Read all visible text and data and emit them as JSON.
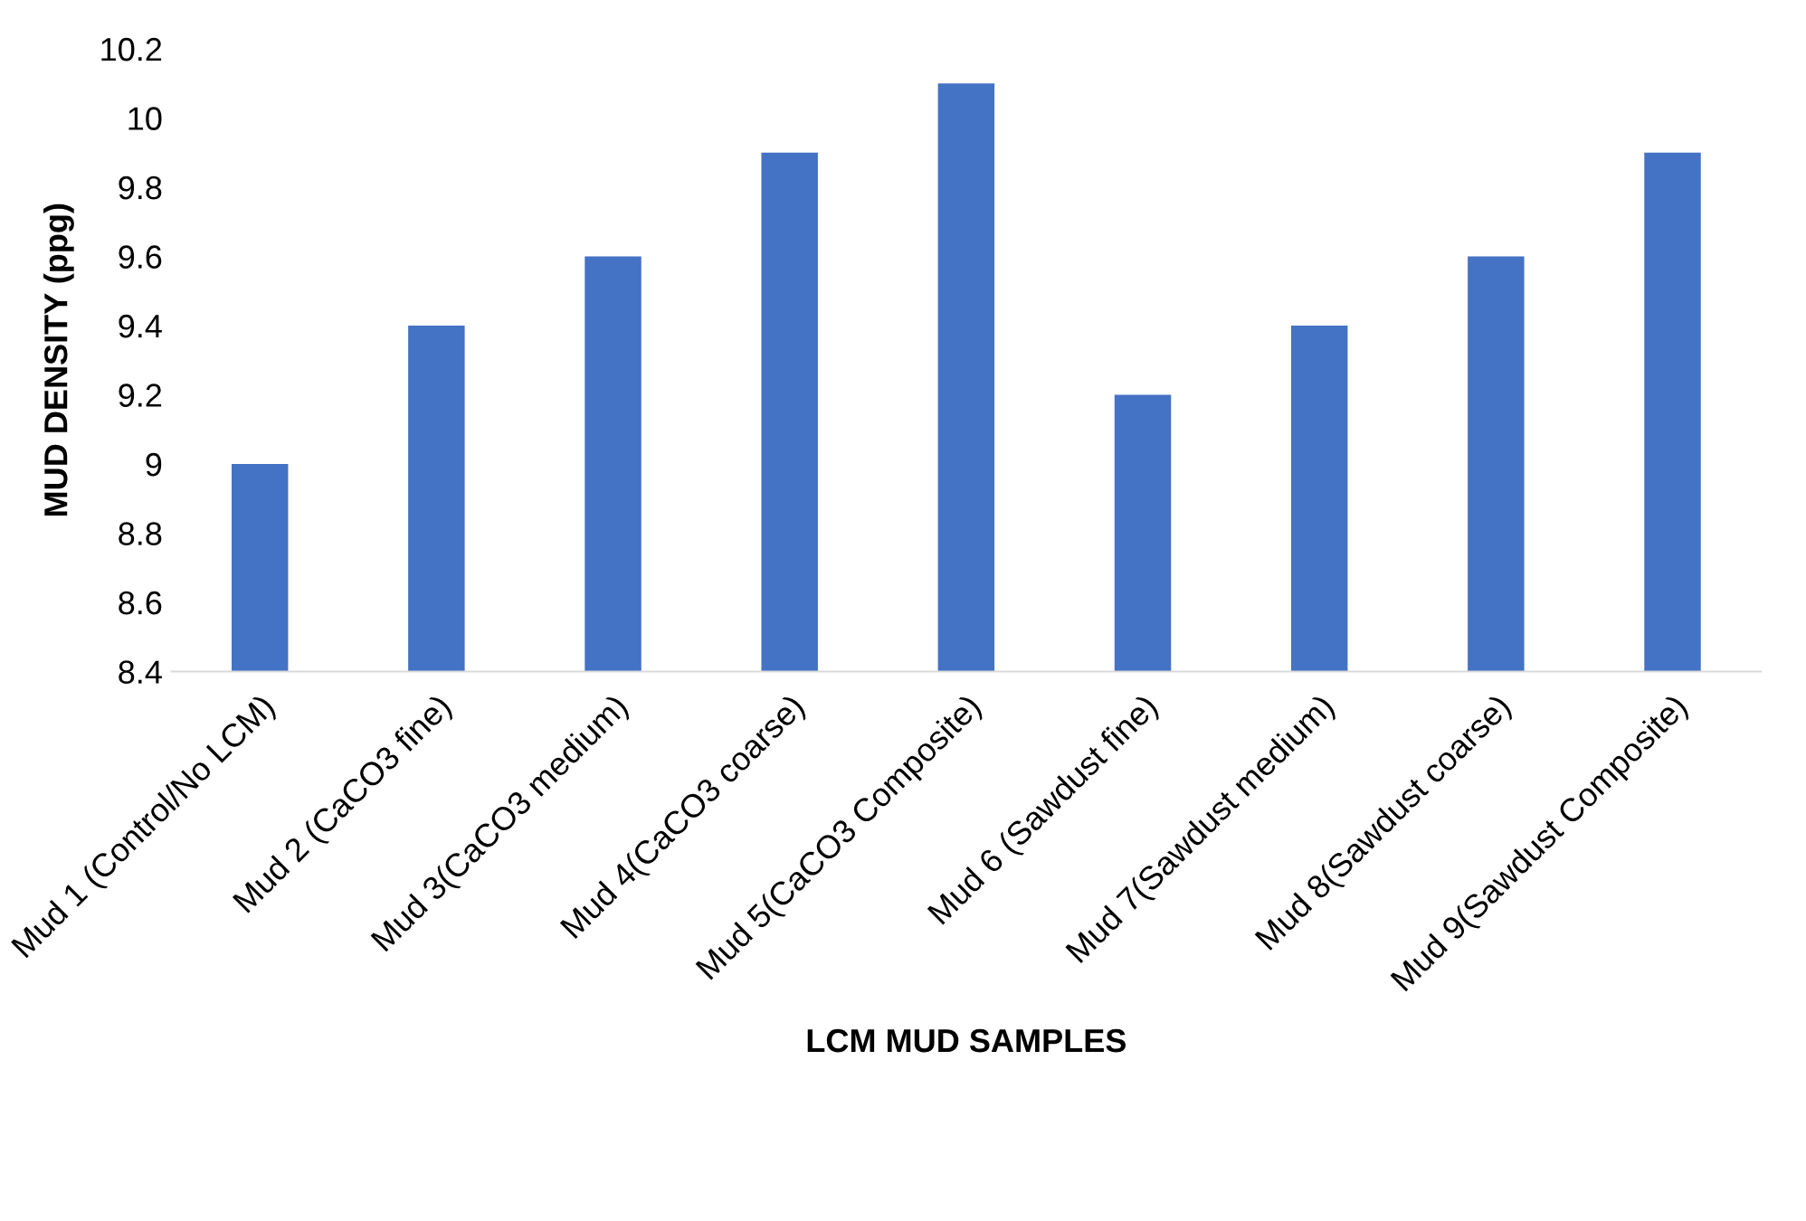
{
  "chart_data": {
    "type": "bar",
    "xlabel": "LCM MUD SAMPLES",
    "ylabel": "MUD DENSITY (ppg)",
    "categories": [
      "Mud 1 (Control/No LCM)",
      "Mud 2 (CaCO3 fine)",
      "Mud 3(CaCO3 medium)",
      "Mud 4(CaCO3 coarse)",
      "Mud 5(CaCO3 Composite)",
      "Mud 6 (Sawdust fine)",
      "Mud 7(Sawdust medium)",
      "Mud 8(Sawdust coarse)",
      "Mud 9(Sawdust Composite)"
    ],
    "values": [
      9.0,
      9.4,
      9.6,
      9.9,
      10.1,
      9.2,
      9.4,
      9.6,
      9.9
    ],
    "color": "#4472c4",
    "ylim": [
      8.4,
      10.2
    ],
    "yticks": [
      8.4,
      8.6,
      8.8,
      9,
      9.2,
      9.4,
      9.6,
      9.8,
      10,
      10.2
    ],
    "grid": false
  }
}
